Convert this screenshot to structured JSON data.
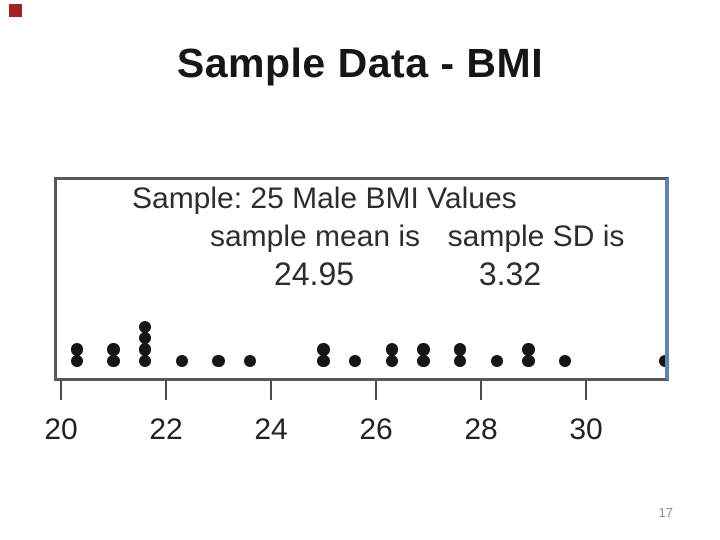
{
  "slide": {
    "title": "Sample Data - BMI",
    "page_number": "17",
    "marker_color": "#a12422"
  },
  "chart_data": {
    "type": "scatter",
    "subtype": "dot-plot",
    "title": "Sample: 25 Male BMI Values",
    "labels": {
      "mean_label": "sample mean is",
      "sd_label": "sample SD is",
      "mean_value": "24.95",
      "sd_value": "3.32"
    },
    "n": 25,
    "sample_mean": 24.95,
    "sample_sd": 3.32,
    "x_ticks": [
      20,
      22,
      24,
      26,
      28,
      30
    ],
    "xlim": [
      19.85,
      31.7
    ],
    "grid": false,
    "legend": false,
    "points": [
      {
        "x": 20.3,
        "count": 2
      },
      {
        "x": 21.0,
        "count": 2
      },
      {
        "x": 21.6,
        "count": 4
      },
      {
        "x": 22.3,
        "count": 1
      },
      {
        "x": 23.0,
        "count": 1
      },
      {
        "x": 23.6,
        "count": 1
      },
      {
        "x": 25.0,
        "count": 2
      },
      {
        "x": 25.6,
        "count": 1
      },
      {
        "x": 26.3,
        "count": 2
      },
      {
        "x": 26.9,
        "count": 2
      },
      {
        "x": 27.6,
        "count": 2
      },
      {
        "x": 28.3,
        "count": 1
      },
      {
        "x": 28.9,
        "count": 2
      },
      {
        "x": 29.6,
        "count": 1
      },
      {
        "x": 31.5,
        "count": 1
      }
    ],
    "values": [
      20.3,
      20.3,
      21.0,
      21.0,
      21.6,
      21.6,
      21.6,
      21.6,
      22.3,
      23.0,
      23.6,
      25.0,
      25.0,
      25.6,
      26.3,
      26.3,
      26.9,
      26.9,
      27.6,
      27.6,
      28.3,
      28.9,
      28.9,
      29.6,
      31.5
    ],
    "colors": {
      "dot": "#161616",
      "box_border": "#58585a",
      "box_right_border": "#5c85b2",
      "axis": "#4a4a4a",
      "tick_label": "#222222"
    }
  }
}
